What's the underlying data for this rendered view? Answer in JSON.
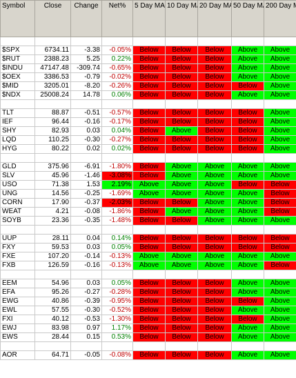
{
  "columns": [
    "Symbol",
    "Close",
    "Change",
    "Net%",
    "5 Day MA",
    "10 Day MA",
    "20 Day MA",
    "50 Day MA",
    "200 Day MA"
  ],
  "groups": [
    [
      {
        "symbol": "$SPX",
        "close": "6734.11",
        "change": "-3.38",
        "net": "-0.05%",
        "ma": [
          "Below",
          "Below",
          "Below",
          "Above",
          "Above"
        ]
      },
      {
        "symbol": "$RUT",
        "close": "2388.23",
        "change": "5.25",
        "net": "0.22%",
        "ma": [
          "Below",
          "Below",
          "Below",
          "Above",
          "Above"
        ]
      },
      {
        "symbol": "$INDU",
        "close": "47147.48",
        "change": "-309.74",
        "net": "-0.65%",
        "ma": [
          "Below",
          "Below",
          "Below",
          "Above",
          "Above"
        ]
      },
      {
        "symbol": "$OEX",
        "close": "3386.53",
        "change": "-0.79",
        "net": "-0.02%",
        "ma": [
          "Below",
          "Below",
          "Below",
          "Above",
          "Above"
        ]
      },
      {
        "symbol": "$MID",
        "close": "3205.01",
        "change": "-8.20",
        "net": "-0.26%",
        "ma": [
          "Below",
          "Below",
          "Below",
          "Below",
          "Above"
        ]
      },
      {
        "symbol": "$NDX",
        "close": "25008.24",
        "change": "14.78",
        "net": "0.06%",
        "ma": [
          "Below",
          "Below",
          "Below",
          "Above",
          "Above"
        ]
      }
    ],
    [
      {
        "symbol": "TLT",
        "close": "88.87",
        "change": "-0.51",
        "net": "-0.57%",
        "ma": [
          "Below",
          "Below",
          "Below",
          "Below",
          "Above"
        ]
      },
      {
        "symbol": "IEF",
        "close": "96.44",
        "change": "-0.16",
        "net": "-0.17%",
        "ma": [
          "Below",
          "Below",
          "Below",
          "Below",
          "Above"
        ]
      },
      {
        "symbol": "SHY",
        "close": "82.93",
        "change": "0.03",
        "net": "0.04%",
        "ma": [
          "Below",
          "Above",
          "Below",
          "Below",
          "Above"
        ]
      },
      {
        "symbol": "LQD",
        "close": "110.25",
        "change": "-0.30",
        "net": "-0.27%",
        "ma": [
          "Below",
          "Below",
          "Below",
          "Below",
          "Above"
        ]
      },
      {
        "symbol": "HYG",
        "close": "80.22",
        "change": "0.02",
        "net": "0.02%",
        "ma": [
          "Below",
          "Below",
          "Below",
          "Below",
          "Above"
        ]
      }
    ],
    [
      {
        "symbol": "GLD",
        "close": "375.96",
        "change": "-6.91",
        "net": "-1.80%",
        "ma": [
          "Below",
          "Above",
          "Above",
          "Above",
          "Above"
        ]
      },
      {
        "symbol": "SLV",
        "close": "45.96",
        "change": "-1.46",
        "net": "-3.08%",
        "ma": [
          "Below",
          "Above",
          "Above",
          "Above",
          "Above"
        ]
      },
      {
        "symbol": "USO",
        "close": "71.38",
        "change": "1.53",
        "net": "2.19%",
        "ma": [
          "Above",
          "Above",
          "Above",
          "Below",
          "Below"
        ]
      },
      {
        "symbol": "UNG",
        "close": "14.56",
        "change": "-0.25",
        "net": "-1.69%",
        "ma": [
          "Above",
          "Above",
          "Above",
          "Above",
          "Below"
        ]
      },
      {
        "symbol": "CORN",
        "close": "17.90",
        "change": "-0.37",
        "net": "-2.03%",
        "ma": [
          "Below",
          "Below",
          "Above",
          "Above",
          "Below"
        ]
      },
      {
        "symbol": "WEAT",
        "close": "4.21",
        "change": "-0.08",
        "net": "-1.86%",
        "ma": [
          "Below",
          "Above",
          "Above",
          "Above",
          "Below"
        ]
      },
      {
        "symbol": "SOYB",
        "close": "23.36",
        "change": "-0.35",
        "net": "-1.48%",
        "ma": [
          "Below",
          "Below",
          "Above",
          "Above",
          "Above"
        ]
      }
    ],
    [
      {
        "symbol": "UUP",
        "close": "28.11",
        "change": "0.04",
        "net": "0.14%",
        "ma": [
          "Below",
          "Below",
          "Below",
          "Below",
          "Below"
        ]
      },
      {
        "symbol": "FXY",
        "close": "59.53",
        "change": "0.03",
        "net": "0.05%",
        "ma": [
          "Below",
          "Below",
          "Below",
          "Below",
          "Below"
        ]
      },
      {
        "symbol": "FXE",
        "close": "107.20",
        "change": "-0.14",
        "net": "-0.13%",
        "ma": [
          "Above",
          "Above",
          "Above",
          "Above",
          "Above"
        ]
      },
      {
        "symbol": "FXB",
        "close": "126.59",
        "change": "-0.16",
        "net": "-0.13%",
        "ma": [
          "Above",
          "Above",
          "Above",
          "Above",
          "Below"
        ]
      }
    ],
    [
      {
        "symbol": "EEM",
        "close": "54.96",
        "change": "0.03",
        "net": "0.05%",
        "ma": [
          "Below",
          "Below",
          "Below",
          "Above",
          "Above"
        ]
      },
      {
        "symbol": "EFA",
        "close": "95.26",
        "change": "-0.27",
        "net": "-0.28%",
        "ma": [
          "Below",
          "Below",
          "Below",
          "Above",
          "Above"
        ]
      },
      {
        "symbol": "EWG",
        "close": "40.86",
        "change": "-0.39",
        "net": "-0.95%",
        "ma": [
          "Below",
          "Below",
          "Below",
          "Below",
          "Above"
        ]
      },
      {
        "symbol": "EWL",
        "close": "57.55",
        "change": "-0.30",
        "net": "-0.52%",
        "ma": [
          "Below",
          "Below",
          "Below",
          "Above",
          "Above"
        ]
      },
      {
        "symbol": "FXI",
        "close": "40.12",
        "change": "-0.53",
        "net": "-1.30%",
        "ma": [
          "Below",
          "Below",
          "Below",
          "Below",
          "Above"
        ]
      },
      {
        "symbol": "EWJ",
        "close": "83.98",
        "change": "0.97",
        "net": "1.17%",
        "ma": [
          "Below",
          "Below",
          "Below",
          "Above",
          "Above"
        ]
      },
      {
        "symbol": "EWS",
        "close": "28.44",
        "change": "0.15",
        "net": "0.53%",
        "ma": [
          "Below",
          "Below",
          "Below",
          "Above",
          "Above"
        ]
      }
    ],
    [
      {
        "symbol": "AOR",
        "close": "64.71",
        "change": "-0.05",
        "net": "-0.08%",
        "ma": [
          "Below",
          "Below",
          "Below",
          "Above",
          "Above"
        ]
      }
    ]
  ],
  "highlighted_net": [
    "SLV",
    "USO",
    "CORN"
  ],
  "colors": {
    "header_bg": "#d8d5cc",
    "above": "#00ff00",
    "below": "#ff0000",
    "net_positive_text": "#008000",
    "net_negative_text": "#c00000"
  }
}
